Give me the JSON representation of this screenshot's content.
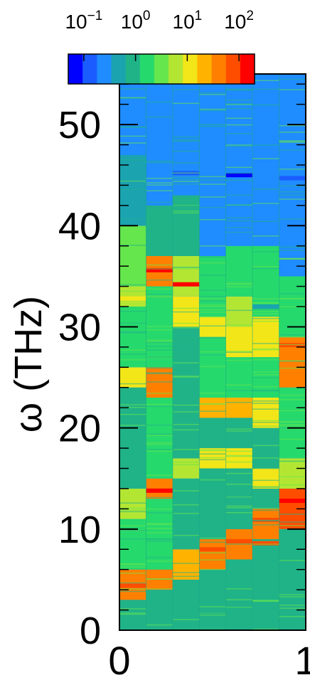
{
  "chart_data": {
    "type": "heatmap",
    "title": "",
    "xlabel": "",
    "ylabel": "ω (THz)",
    "xlim": [
      0,
      1
    ],
    "ylim": [
      0,
      55
    ],
    "x_ticks": [
      0,
      1
    ],
    "x_tick_labels": [
      "0",
      "1"
    ],
    "y_ticks": [
      0,
      10,
      20,
      30,
      40,
      50
    ],
    "y_tick_labels": [
      "0",
      "10",
      "20",
      "30",
      "40",
      "50"
    ],
    "colorbar": {
      "scale": "log",
      "range": [
        0.05,
        200
      ],
      "tick_values": [
        0.1,
        1,
        10,
        100
      ],
      "tick_bases": [
        "10",
        "10",
        "10",
        "10"
      ],
      "tick_exponents": [
        "−1",
        "0",
        "1",
        "2"
      ],
      "placement": "top",
      "colors": [
        "#0000ff",
        "#1a5cff",
        "#1f8cff",
        "#1ba3b0",
        "#20b388",
        "#26d96c",
        "#66e64d",
        "#b3e633",
        "#f2e619",
        "#ffb300",
        "#ff8000",
        "#ff4d00",
        "#ff0000"
      ]
    },
    "columns": [
      {
        "x_range": [
          0.0,
          0.143
        ],
        "bands": [
          {
            "range": [
              0,
              3
            ],
            "value": 1.0
          },
          {
            "range": [
              3,
              6
            ],
            "value": 30
          },
          {
            "range": [
              6,
              11
            ],
            "value": 1.5
          },
          {
            "range": [
              11,
              14
            ],
            "value": 8
          },
          {
            "range": [
              14,
              24
            ],
            "value": 1.2
          },
          {
            "range": [
              24,
              26
            ],
            "value": 10
          },
          {
            "range": [
              26,
              32
            ],
            "value": 2
          },
          {
            "range": [
              32,
              34
            ],
            "value": 8
          },
          {
            "range": [
              34,
              40
            ],
            "value": 3
          },
          {
            "range": [
              40,
              47
            ],
            "value": 0.6
          },
          {
            "range": [
              47,
              55
            ],
            "value": 0.3
          }
        ],
        "lines": [
          {
            "y": 4.4,
            "value": 100
          },
          {
            "y": 32.8,
            "value": 15
          }
        ]
      },
      {
        "x_range": [
          0.143,
          0.286
        ],
        "bands": [
          {
            "range": [
              0,
              4
            ],
            "value": 1.2
          },
          {
            "range": [
              4,
              6
            ],
            "value": 40
          },
          {
            "range": [
              6,
              13
            ],
            "value": 1.3
          },
          {
            "range": [
              13,
              15
            ],
            "value": 50
          },
          {
            "range": [
              15,
              23
            ],
            "value": 1.3
          },
          {
            "range": [
              23,
              26
            ],
            "value": 40
          },
          {
            "range": [
              26,
              34
            ],
            "value": 2
          },
          {
            "range": [
              34,
              37
            ],
            "value": 50
          },
          {
            "range": [
              37,
              42
            ],
            "value": 0.8
          },
          {
            "range": [
              42,
              55
            ],
            "value": 0.3
          }
        ],
        "lines": [
          {
            "y": 35.6,
            "value": 120
          },
          {
            "y": 13.8,
            "value": 120
          }
        ]
      },
      {
        "x_range": [
          0.286,
          0.429
        ],
        "bands": [
          {
            "range": [
              0,
              5
            ],
            "value": 1.0
          },
          {
            "range": [
              5,
              8
            ],
            "value": 20
          },
          {
            "range": [
              8,
              15
            ],
            "value": 1.0
          },
          {
            "range": [
              15,
              17
            ],
            "value": 6
          },
          {
            "range": [
              17,
              30
            ],
            "value": 1.0
          },
          {
            "range": [
              30,
              33
            ],
            "value": 15
          },
          {
            "range": [
              33,
              37
            ],
            "value": 8
          },
          {
            "range": [
              37,
              43
            ],
            "value": 0.7
          },
          {
            "range": [
              43,
              55
            ],
            "value": 0.3
          }
        ],
        "lines": [
          {
            "y": 34.2,
            "value": 200
          },
          {
            "y": 45.2,
            "value": 0.1
          }
        ]
      },
      {
        "x_range": [
          0.429,
          0.571
        ],
        "bands": [
          {
            "range": [
              0,
              6
            ],
            "value": 1.0
          },
          {
            "range": [
              6,
              9
            ],
            "value": 40
          },
          {
            "range": [
              9,
              16
            ],
            "value": 1.0
          },
          {
            "range": [
              16,
              18
            ],
            "value": 10
          },
          {
            "range": [
              18,
              21
            ],
            "value": 1.2
          },
          {
            "range": [
              21,
              23
            ],
            "value": 20
          },
          {
            "range": [
              23,
              29
            ],
            "value": 1.5
          },
          {
            "range": [
              29,
              31
            ],
            "value": 10
          },
          {
            "range": [
              31,
              37
            ],
            "value": 2
          },
          {
            "range": [
              37,
              55
            ],
            "value": 0.3
          }
        ],
        "lines": [
          {
            "y": 8.0,
            "value": 80
          },
          {
            "y": 21.8,
            "value": 25
          }
        ]
      },
      {
        "x_range": [
          0.571,
          0.714
        ],
        "bands": [
          {
            "range": [
              0,
              7
            ],
            "value": 1.0
          },
          {
            "range": [
              7,
              10
            ],
            "value": 40
          },
          {
            "range": [
              10,
              16
            ],
            "value": 1.0
          },
          {
            "range": [
              16,
              18
            ],
            "value": 12
          },
          {
            "range": [
              18,
              21
            ],
            "value": 1.2
          },
          {
            "range": [
              21,
              23
            ],
            "value": 20
          },
          {
            "range": [
              23,
              27
            ],
            "value": 1.3
          },
          {
            "range": [
              27,
              30
            ],
            "value": 15
          },
          {
            "range": [
              30,
              33
            ],
            "value": 5
          },
          {
            "range": [
              33,
              38
            ],
            "value": 1.5
          },
          {
            "range": [
              38,
              55
            ],
            "value": 0.3
          }
        ],
        "lines": [
          {
            "y": 8.8,
            "value": 60
          },
          {
            "y": 45.0,
            "value": 0.08
          }
        ]
      },
      {
        "x_range": [
          0.714,
          0.857
        ],
        "bands": [
          {
            "range": [
              0,
              9
            ],
            "value": 1.0
          },
          {
            "range": [
              9,
              12
            ],
            "value": 50
          },
          {
            "range": [
              12,
              14
            ],
            "value": 1.2
          },
          {
            "range": [
              14,
              16
            ],
            "value": 10
          },
          {
            "range": [
              16,
              20
            ],
            "value": 1.2
          },
          {
            "range": [
              20,
              23
            ],
            "value": 15
          },
          {
            "range": [
              23,
              27
            ],
            "value": 2
          },
          {
            "range": [
              27,
              31
            ],
            "value": 15
          },
          {
            "range": [
              31,
              38
            ],
            "value": 1.5
          },
          {
            "range": [
              38,
              55
            ],
            "value": 0.3
          }
        ],
        "lines": [
          {
            "y": 8.6,
            "value": 80
          },
          {
            "y": 10.9,
            "value": 90
          },
          {
            "y": 32.0,
            "value": 0.4
          }
        ]
      },
      {
        "x_range": [
          0.857,
          1.0
        ],
        "bands": [
          {
            "range": [
              0,
              10
            ],
            "value": 1.0
          },
          {
            "range": [
              10,
              14
            ],
            "value": 60
          },
          {
            "range": [
              14,
              17
            ],
            "value": 8
          },
          {
            "range": [
              17,
              24
            ],
            "value": 1.3
          },
          {
            "range": [
              24,
              29
            ],
            "value": 30
          },
          {
            "range": [
              29,
              35
            ],
            "value": 2
          },
          {
            "range": [
              35,
              55
            ],
            "value": 0.3
          }
        ],
        "lines": [
          {
            "y": 12.8,
            "value": 120
          },
          {
            "y": 28.2,
            "value": 90
          },
          {
            "y": 44.7,
            "value": 0.1
          }
        ]
      }
    ]
  }
}
